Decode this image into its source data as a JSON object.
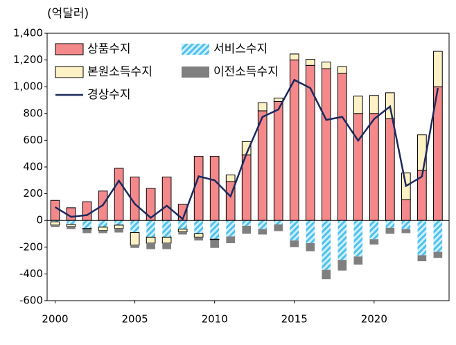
{
  "chart_data": {
    "type": "bar",
    "stacked": true,
    "unit_label": "(억달러)",
    "x": [
      2000,
      2001,
      2002,
      2003,
      2004,
      2005,
      2006,
      2007,
      2008,
      2009,
      2010,
      2011,
      2012,
      2013,
      2014,
      2015,
      2016,
      2017,
      2018,
      2019,
      2020,
      2021,
      2022,
      2023,
      2024
    ],
    "xlim": [
      1999.5,
      2024.7
    ],
    "xticks": [
      2000,
      2005,
      2010,
      2015,
      2020
    ],
    "ylim": [
      -600,
      1400
    ],
    "yticks": [
      -600,
      -400,
      -200,
      0,
      200,
      400,
      600,
      800,
      {
        "value": 1000,
        "label": "1,000"
      },
      {
        "value": 1200,
        "label": "1,200"
      },
      {
        "value": 1400,
        "label": "1,400"
      }
    ],
    "series": [
      {
        "name": "상품수지",
        "color": "#f4898b",
        "values": [
          150,
          95,
          140,
          220,
          390,
          325,
          240,
          325,
          120,
          480,
          480,
          290,
          490,
          820,
          890,
          1200,
          1160,
          1135,
          1100,
          800,
          800,
          760,
          155,
          375,
          1000
        ]
      },
      {
        "name": "서비스수지",
        "color": "#4fc1ec",
        "hatch": true,
        "values": [
          -10,
          -30,
          -60,
          -50,
          -35,
          -90,
          -125,
          -125,
          -65,
          -100,
          -140,
          -120,
          -40,
          -65,
          -30,
          -150,
          -170,
          -370,
          -295,
          -270,
          -140,
          -55,
          -65,
          -260,
          -235
        ]
      },
      {
        "name": "본원소득수지",
        "color": "#fdf1c6",
        "values": [
          -25,
          -15,
          -5,
          -25,
          -25,
          -95,
          -45,
          -45,
          -20,
          -25,
          -5,
          50,
          100,
          60,
          25,
          45,
          45,
          50,
          50,
          130,
          135,
          195,
          200,
          265,
          265
        ]
      },
      {
        "name": "이전소득수지",
        "color": "#7f7f7f",
        "values": [
          -15,
          -20,
          -30,
          -20,
          -30,
          -20,
          -45,
          -45,
          -20,
          -25,
          -60,
          -50,
          -60,
          -40,
          -50,
          -50,
          -60,
          -70,
          -80,
          -60,
          -40,
          -45,
          -30,
          -45,
          -45
        ]
      },
      {
        "name": "경상수지",
        "color": "#1c2a5e",
        "type": "line",
        "values": [
          100,
          27,
          40,
          115,
          297,
          123,
          20,
          110,
          10,
          330,
          300,
          180,
          500,
          774,
          830,
          1051,
          990,
          752,
          775,
          597,
          759,
          852,
          258,
          328,
          990
        ]
      }
    ]
  }
}
